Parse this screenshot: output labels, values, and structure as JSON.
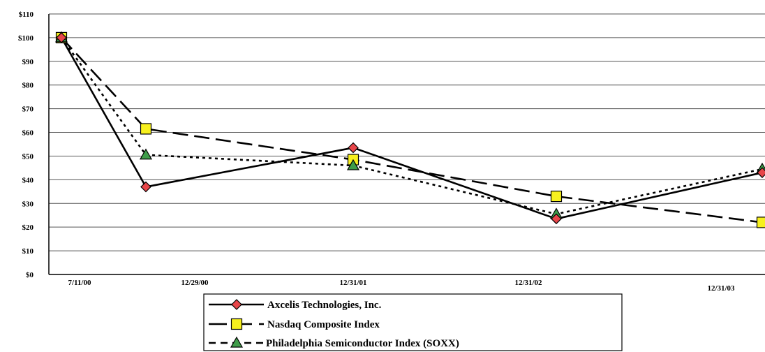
{
  "chart_data": {
    "type": "line",
    "title": "",
    "xlabel": "",
    "ylabel": "",
    "x": [
      "7/11/00",
      "12/29/00",
      "12/31/01",
      "12/31/02",
      "12/31/03"
    ],
    "ylim": [
      0,
      110
    ],
    "yticks": [
      0,
      10,
      20,
      30,
      40,
      50,
      60,
      70,
      80,
      90,
      100,
      110
    ],
    "ytick_labels": [
      "$0",
      "$10",
      "$20",
      "$30",
      "$40",
      "$50",
      "$60",
      "$70",
      "$80",
      "$90",
      "$100",
      "$110"
    ],
    "grid": true,
    "legend_position": "bottom-center",
    "series": [
      {
        "name": "Axcelis Technologies, Inc.",
        "values": [
          100,
          37,
          53.5,
          23.5,
          43
        ],
        "color": "#000000",
        "line_style": "solid",
        "marker": "diamond",
        "marker_color": "#e8464a"
      },
      {
        "name": "Nasdaq Composite Index",
        "values": [
          100,
          61.5,
          48.5,
          33,
          22
        ],
        "color": "#000000",
        "line_style": "dashed",
        "marker": "square",
        "marker_color": "#f7f01e"
      },
      {
        "name": "Philadelphia Semiconductor Index (SOXX)",
        "values": [
          100,
          50.5,
          46,
          25.5,
          44.5
        ],
        "color": "#000000",
        "line_style": "dotted",
        "marker": "triangle",
        "marker_color": "#3f9d4a"
      }
    ]
  }
}
